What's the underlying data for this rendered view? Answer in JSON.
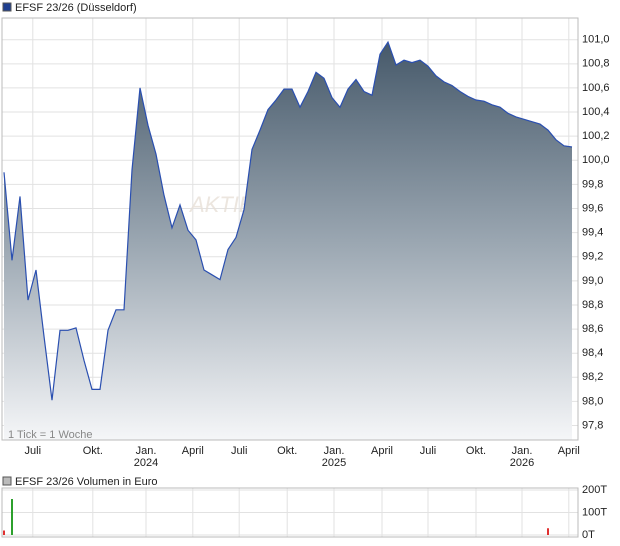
{
  "chart_data": [
    {
      "type": "area",
      "title": "EFSF 23/26 (Düsseldorf)",
      "note": "1 Tick = 1 Woche",
      "watermark": "AKTIE",
      "series": [
        {
          "name": "EFSF 23/26 (Düsseldorf)",
          "color": "#2a4fb0",
          "values": [
            99.9,
            99.17,
            99.7,
            98.84,
            99.09,
            98.54,
            98.01,
            98.59,
            98.59,
            98.61,
            98.34,
            98.1,
            98.1,
            98.59,
            98.76,
            98.76,
            99.92,
            100.6,
            100.29,
            100.05,
            99.71,
            99.44,
            99.63,
            99.42,
            99.34,
            99.09,
            99.05,
            99.01,
            99.26,
            99.36,
            99.59,
            100.09,
            100.25,
            100.42,
            100.5,
            100.59,
            100.59,
            100.44,
            100.57,
            100.73,
            100.68,
            100.52,
            100.44,
            100.59,
            100.67,
            100.57,
            100.54,
            100.88,
            100.98,
            100.79,
            100.83,
            100.81,
            100.83,
            100.78,
            100.7,
            100.65,
            100.62,
            100.57,
            100.53,
            100.5,
            100.49,
            100.46,
            100.44,
            100.39,
            100.36,
            100.34,
            100.32,
            100.3,
            100.25,
            100.17,
            100.12,
            100.11
          ]
        }
      ],
      "xlim": [
        -0.25,
        71.75
      ],
      "xticks": [
        {
          "value": 3.6,
          "label": "Juli"
        },
        {
          "value": 11.1,
          "label": "Okt."
        },
        {
          "value": 17.75,
          "label": "Jan.",
          "year": "2024"
        },
        {
          "value": 23.6,
          "label": "April"
        },
        {
          "value": 29.4,
          "label": "Juli"
        },
        {
          "value": 35.4,
          "label": "Okt."
        },
        {
          "value": 41.25,
          "label": "Jan.",
          "year": "2025"
        },
        {
          "value": 47.25,
          "label": "April"
        },
        {
          "value": 53,
          "label": "Juli"
        },
        {
          "value": 59,
          "label": "Okt."
        },
        {
          "value": 64.75,
          "label": "Jan.",
          "year": "2026"
        },
        {
          "value": 70.6,
          "label": "April"
        }
      ],
      "ylim": [
        97.68,
        101.18
      ],
      "yticks": [
        {
          "value": 97.8,
          "label": "97,8"
        },
        {
          "value": 98.0,
          "label": "98,0"
        },
        {
          "value": 98.2,
          "label": "98,2"
        },
        {
          "value": 98.4,
          "label": "98,4"
        },
        {
          "value": 98.6,
          "label": "98,6"
        },
        {
          "value": 98.8,
          "label": "98,8"
        },
        {
          "value": 99.0,
          "label": "99,0"
        },
        {
          "value": 99.2,
          "label": "99,2"
        },
        {
          "value": 99.4,
          "label": "99,4"
        },
        {
          "value": 99.6,
          "label": "99,6"
        },
        {
          "value": 99.8,
          "label": "99,8"
        },
        {
          "value": 100.0,
          "label": "100,0"
        },
        {
          "value": 100.2,
          "label": "100,2"
        },
        {
          "value": 100.4,
          "label": "100,4"
        },
        {
          "value": 100.6,
          "label": "100,6"
        },
        {
          "value": 100.8,
          "label": "100,8"
        },
        {
          "value": 101.0,
          "label": "101,0"
        }
      ],
      "grid": true
    },
    {
      "type": "bar",
      "title": "EFSF 23/26 Volumen in Euro",
      "x": [
        0,
        1,
        68
      ],
      "values": [
        20000,
        160000,
        30000
      ],
      "colors": [
        "#e03030",
        "#2ca02c",
        "#e03030"
      ],
      "xlim": [
        -0.25,
        71.75
      ],
      "ylim": [
        0,
        200000
      ],
      "yticks": [
        {
          "value": 0,
          "label": "0T"
        },
        {
          "value": 100000,
          "label": "100T"
        },
        {
          "value": 200000,
          "label": "200T"
        }
      ],
      "grid": true
    }
  ]
}
